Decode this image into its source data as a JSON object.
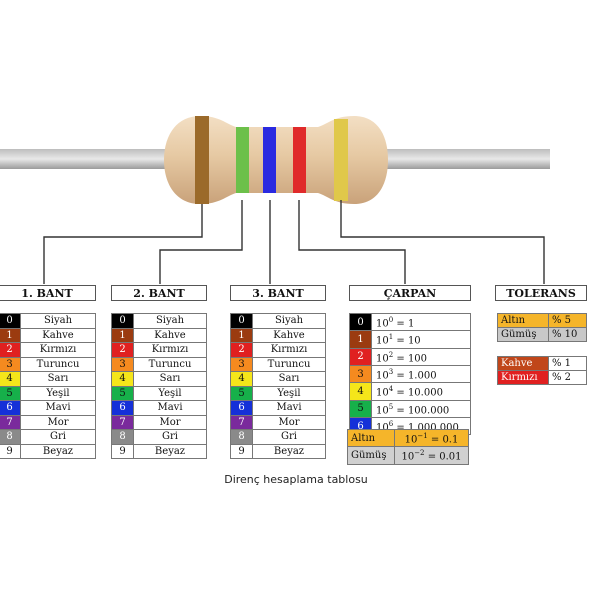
{
  "caption": "Direnç hesaplama tablosu",
  "headers": {
    "band1": "1. BANT",
    "band2": "2. BANT",
    "band3": "3. BANT",
    "multiplier": "ÇARPAN",
    "tolerance": "TOLERANS"
  },
  "color_rows": [
    {
      "digit": "0",
      "name": "Siyah",
      "color": "#000000",
      "text": "#ffffff"
    },
    {
      "digit": "1",
      "name": "Kahve",
      "color": "#9b3b10",
      "text": "#ffffff"
    },
    {
      "digit": "2",
      "name": "Kırmızı",
      "color": "#e02020",
      "text": "#ffffff"
    },
    {
      "digit": "3",
      "name": "Turuncu",
      "color": "#f58a1f",
      "text": "#111111"
    },
    {
      "digit": "4",
      "name": "Sarı",
      "color": "#f5e61a",
      "text": "#111111"
    },
    {
      "digit": "5",
      "name": "Yeşil",
      "color": "#16b04a",
      "text": "#111111"
    },
    {
      "digit": "6",
      "name": "Mavi",
      "color": "#1530d8",
      "text": "#ffffff"
    },
    {
      "digit": "7",
      "name": "Mor",
      "color": "#7a2a9c",
      "text": "#ffffff"
    },
    {
      "digit": "8",
      "name": "Gri",
      "color": "#8a8a8a",
      "text": "#ffffff"
    },
    {
      "digit": "9",
      "name": "Beyaz",
      "color": "#ffffff",
      "text": "#111111"
    }
  ],
  "multiplier_rows": [
    {
      "digit": "0",
      "color": "#000000",
      "text": "#ffffff",
      "base": "10",
      "exp": "0",
      "value": " = 1"
    },
    {
      "digit": "1",
      "color": "#9b3b10",
      "text": "#ffffff",
      "base": "10",
      "exp": "1",
      "value": " = 10"
    },
    {
      "digit": "2",
      "color": "#e02020",
      "text": "#ffffff",
      "base": "10",
      "exp": "2",
      "value": " = 100"
    },
    {
      "digit": "3",
      "color": "#f58a1f",
      "text": "#111111",
      "base": "10",
      "exp": "3",
      "value": " = 1.000"
    },
    {
      "digit": "4",
      "color": "#f5e61a",
      "text": "#111111",
      "base": "10",
      "exp": "4",
      "value": " = 10.000"
    },
    {
      "digit": "5",
      "color": "#16b04a",
      "text": "#111111",
      "base": "10",
      "exp": "5",
      "value": " = 100.000"
    },
    {
      "digit": "6",
      "color": "#1530d8",
      "text": "#ffffff",
      "base": "10",
      "exp": "6",
      "value": " = 1.000.000"
    }
  ],
  "fraction_multipliers": [
    {
      "name": "Altın",
      "color": "#f5b52a",
      "base": "10",
      "exp": "−1",
      "value": " = 0.1",
      "bg": "#f5b52a"
    },
    {
      "name": "Gümüş",
      "color": "#c8c8c8",
      "base": "10",
      "exp": "−2",
      "value": " = 0.01",
      "bg": "#d0d0d0"
    }
  ],
  "tolerance_gold_silver": [
    {
      "name": "Altın",
      "value": "% 5",
      "color": "#f5b52a"
    },
    {
      "name": "Gümüş",
      "value": "% 10",
      "color": "#c8c8c8"
    }
  ],
  "tolerance_brown_red": [
    {
      "name": "Kahve",
      "value": "% 1",
      "color": "#c0461a",
      "text": "#ffffff"
    },
    {
      "name": "Kırmızı",
      "value": "% 2",
      "color": "#e02020",
      "text": "#ffffff"
    }
  ],
  "resistor_bands": [
    "#9b6a2a",
    "#6cc04a",
    "#2a2ae0",
    "#e02a2a",
    "#e0c84a"
  ]
}
